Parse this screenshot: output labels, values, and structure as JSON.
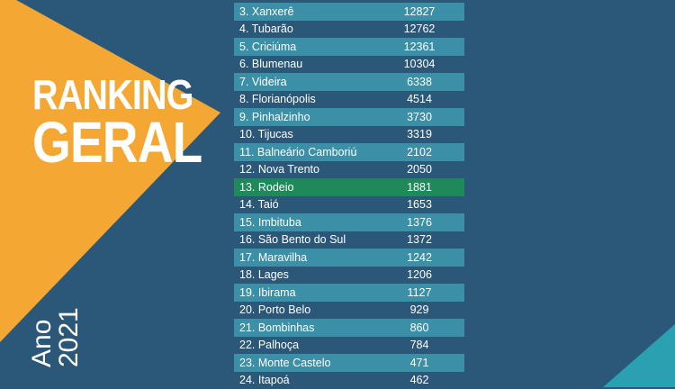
{
  "title": {
    "line1": "RANKING",
    "line2": "GERAL"
  },
  "year": {
    "label": "Ano",
    "value": "2021"
  },
  "colors": {
    "background": "#2b5878",
    "accent_orange": "#f5a733",
    "row_teal": "#3b8fa6",
    "highlight_green": "#1e8a5a",
    "corner_teal": "#2aa0b0"
  },
  "ranking": [
    {
      "name": "3. Xanxerê",
      "value": "12827"
    },
    {
      "name": "4. Tubarão",
      "value": "12762"
    },
    {
      "name": "5. Criciúma",
      "value": "12361"
    },
    {
      "name": "6. Blumenau",
      "value": "10304"
    },
    {
      "name": "7. Videira",
      "value": "6338"
    },
    {
      "name": "8. Florianópolis",
      "value": "4514"
    },
    {
      "name": "9. Pinhalzinho",
      "value": "3730"
    },
    {
      "name": "10. Tijucas",
      "value": "3319"
    },
    {
      "name": "11. Balneário Camboriú",
      "value": "2102"
    },
    {
      "name": "12. Nova Trento",
      "value": "2050"
    },
    {
      "name": "13. Rodeio",
      "value": "1881",
      "highlight": true
    },
    {
      "name": "14. Taió",
      "value": "1653"
    },
    {
      "name": "15. Imbituba",
      "value": "1376"
    },
    {
      "name": "16. São Bento do Sul",
      "value": "1372"
    },
    {
      "name": "17. Maravilha",
      "value": "1242"
    },
    {
      "name": "18. Lages",
      "value": "1206"
    },
    {
      "name": "19. Ibirama",
      "value": "1127"
    },
    {
      "name": "20. Porto Belo",
      "value": "929"
    },
    {
      "name": "21. Bombinhas",
      "value": "860"
    },
    {
      "name": "22. Palhoça",
      "value": "784"
    },
    {
      "name": "23. Monte Castelo",
      "value": "471"
    },
    {
      "name": "24. Itapoá",
      "value": "462"
    }
  ]
}
